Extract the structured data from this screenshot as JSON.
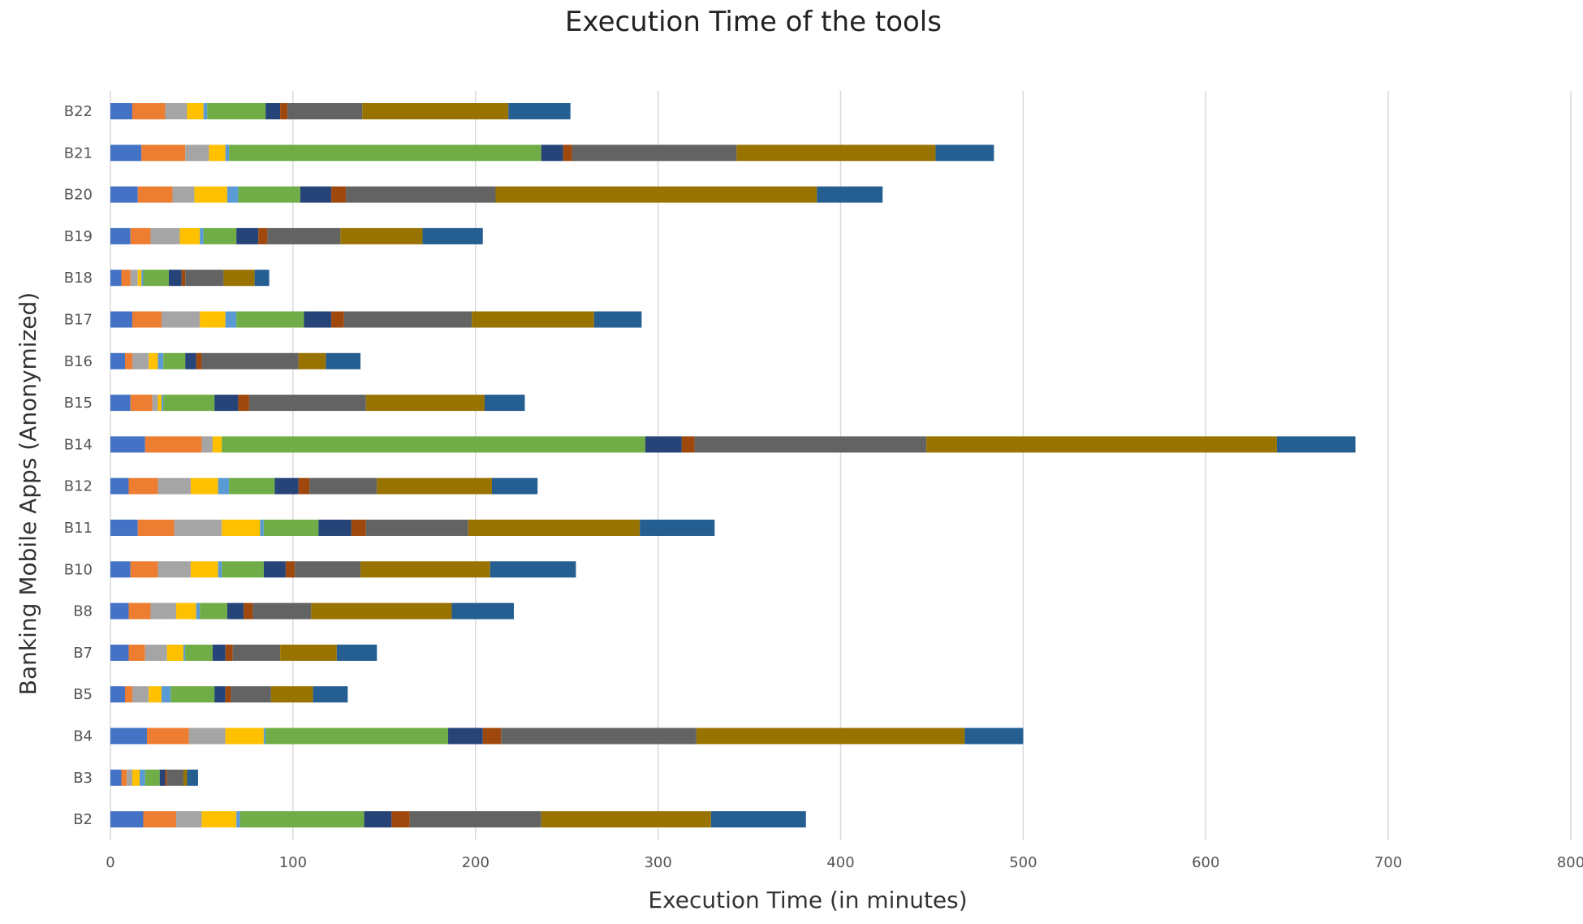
{
  "chart_data": {
    "type": "bar",
    "orientation": "horizontal",
    "stacked": true,
    "title": "Execution Time of the tools",
    "xlabel": "Execution Time (in minutes)",
    "ylabel": "Banking Mobile Apps (Anonymized)",
    "xlim": [
      0,
      800
    ],
    "xticks": [
      0,
      100,
      200,
      300,
      400,
      500,
      600,
      700,
      800
    ],
    "grid": "vertical",
    "legend": "none",
    "categories": [
      "B22",
      "B21",
      "B20",
      "B19",
      "B18",
      "B17",
      "B16",
      "B15",
      "B14",
      "B12",
      "B11",
      "B10",
      "B8",
      "B7",
      "B5",
      "B4",
      "B3",
      "B2"
    ],
    "series": [
      {
        "color": "#4472C4",
        "values": [
          12,
          17,
          15,
          11,
          6,
          12,
          8,
          11,
          19,
          10,
          15,
          11,
          10,
          10,
          8,
          20,
          6,
          18
        ]
      },
      {
        "color": "#ED7D31",
        "values": [
          18,
          24,
          19,
          11,
          5,
          16,
          4,
          12,
          31,
          16,
          20,
          15,
          12,
          9,
          4,
          23,
          3,
          18
        ]
      },
      {
        "color": "#A5A5A5",
        "values": [
          12,
          13,
          12,
          16,
          4,
          21,
          9,
          3,
          6,
          18,
          26,
          18,
          14,
          12,
          9,
          20,
          3,
          14
        ]
      },
      {
        "color": "#FFC000",
        "values": [
          9,
          9,
          18,
          11,
          2,
          14,
          5,
          2,
          5,
          15,
          21,
          15,
          11,
          9,
          7,
          21,
          4,
          19
        ]
      },
      {
        "color": "#5B9BD5",
        "values": [
          2,
          2,
          6,
          2,
          1,
          6,
          3,
          1,
          0,
          6,
          2,
          2,
          2,
          1,
          5,
          1,
          3,
          2
        ]
      },
      {
        "color": "#70AD47",
        "values": [
          32,
          171,
          34,
          18,
          14,
          37,
          12,
          28,
          232,
          25,
          30,
          23,
          15,
          15,
          24,
          100,
          8,
          68
        ]
      },
      {
        "color": "#264478",
        "values": [
          8,
          12,
          17,
          12,
          7,
          15,
          6,
          13,
          20,
          13,
          18,
          12,
          9,
          7,
          6,
          19,
          3,
          15
        ]
      },
      {
        "color": "#9E480E",
        "values": [
          4,
          5,
          8,
          5,
          2,
          7,
          3,
          6,
          7,
          6,
          8,
          5,
          5,
          4,
          3,
          10,
          1,
          10
        ]
      },
      {
        "color": "#636363",
        "values": [
          41,
          90,
          82,
          40,
          21,
          70,
          53,
          64,
          127,
          37,
          56,
          36,
          32,
          26,
          22,
          107,
          9,
          72
        ]
      },
      {
        "color": "#997300",
        "values": [
          80,
          109,
          176,
          45,
          17,
          67,
          15,
          65,
          192,
          63,
          94,
          71,
          77,
          31,
          23,
          147,
          2,
          93
        ]
      },
      {
        "color": "#255E91",
        "values": [
          34,
          32,
          36,
          33,
          8,
          26,
          19,
          22,
          43,
          25,
          41,
          47,
          34,
          22,
          19,
          32,
          6,
          52
        ]
      }
    ]
  }
}
